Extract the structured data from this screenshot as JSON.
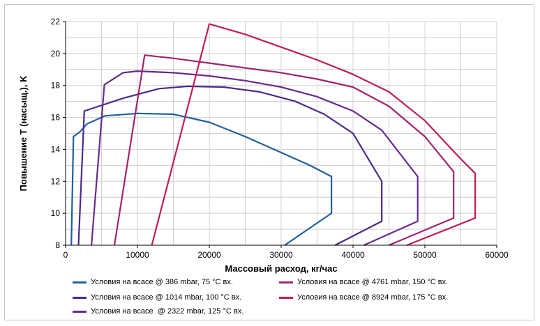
{
  "chart_data": {
    "type": "line",
    "title": "",
    "xlabel": "Массовый расход, кг/час",
    "ylabel": "Повышение T (насыщ.), K",
    "xlim": [
      0,
      60000
    ],
    "ylim": [
      8,
      22
    ],
    "xticks": [
      "0",
      "10000",
      "20000",
      "30000",
      "40000",
      "50000",
      "60000"
    ],
    "yticks": [
      "8",
      "10",
      "12",
      "14",
      "16",
      "18",
      "20",
      "22"
    ],
    "grid": true,
    "legend_position": "bottom",
    "series": [
      {
        "name": "Условия на всасе @ 386 mbar, 75 °C вх.",
        "color": "#1f5f9f",
        "x": [
          800,
          1100,
          2000,
          3000,
          5500,
          10000,
          15000,
          20000,
          25000,
          30000,
          34000,
          37000,
          37000,
          30500
        ],
        "y": [
          8,
          14.8,
          15.1,
          15.6,
          16.1,
          16.25,
          16.2,
          15.7,
          14.8,
          13.8,
          13.0,
          12.3,
          10.0,
          8
        ]
      },
      {
        "name": "Условия на всасе @ 1014 mbar, 100 °C вх.",
        "color": "#4b2a8a",
        "x": [
          1800,
          2600,
          8000,
          13000,
          17000,
          22000,
          27000,
          32000,
          36000,
          40000,
          44000,
          44000,
          37500
        ],
        "y": [
          8,
          16.4,
          17.2,
          17.8,
          17.95,
          17.9,
          17.6,
          17.0,
          16.2,
          15.0,
          12.0,
          9.5,
          8
        ]
      },
      {
        "name": "Условия на всасе  @ 2322 mbar, 125 °C вх.",
        "color": "#6a2a8e",
        "x": [
          3600,
          5400,
          8000,
          10000,
          15000,
          20000,
          25000,
          30000,
          35000,
          40000,
          44000,
          49000,
          49000,
          41500
        ],
        "y": [
          8,
          18.05,
          18.8,
          18.9,
          18.8,
          18.6,
          18.3,
          17.9,
          17.3,
          16.4,
          15.2,
          12.3,
          9.5,
          8
        ]
      },
      {
        "name": "Условия на всасе @ 4761 mbar, 150 °C вх.",
        "color": "#a4236f",
        "x": [
          6800,
          11000,
          15000,
          20000,
          25000,
          30000,
          35000,
          40000,
          45000,
          50000,
          54000,
          54000,
          45000
        ],
        "y": [
          8,
          19.9,
          19.7,
          19.4,
          19.1,
          18.8,
          18.4,
          17.9,
          16.7,
          14.8,
          12.6,
          9.7,
          8
        ]
      },
      {
        "name": "Условия на всасе @ 8924 mbar, 175 °C вх.",
        "color": "#c21c55",
        "x": [
          12000,
          20000,
          25000,
          30000,
          35000,
          40000,
          45000,
          50000,
          55000,
          57000,
          57000,
          47500
        ],
        "y": [
          8,
          21.85,
          21.2,
          20.4,
          19.6,
          18.7,
          17.6,
          15.8,
          13.4,
          12.5,
          9.7,
          8
        ]
      }
    ]
  }
}
